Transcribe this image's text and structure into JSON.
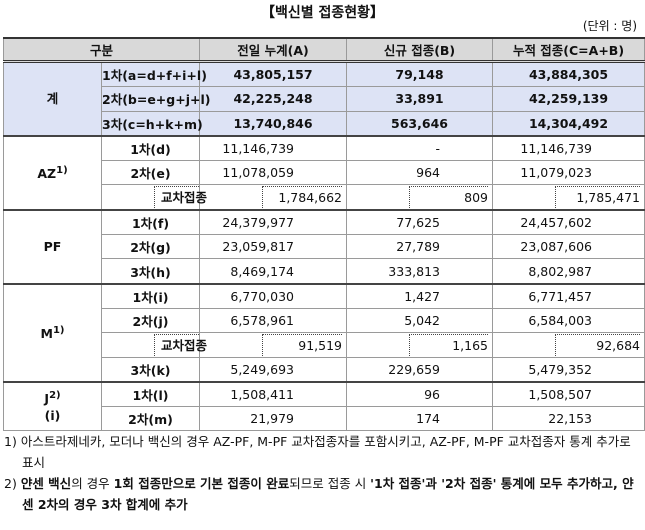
{
  "header": {
    "title": "【백신별 접종현황】",
    "unit": "(단위 : 명)"
  },
  "table": {
    "columns": [
      "구분",
      "전일 누계(A)",
      "신규 접종(B)",
      "누적 접종(C=A+B)"
    ],
    "groups": [
      {
        "label": "계",
        "highlight": true,
        "rows": [
          {
            "label": "1차(a=d+f+i+l)",
            "values": [
              "43,805,157",
              "79,148",
              "43,884,305"
            ]
          },
          {
            "label": "2차(b=e+g+j+l)",
            "values": [
              "42,225,248",
              "33,891",
              "42,259,139"
            ]
          },
          {
            "label": "3차(c=h+k+m)",
            "values": [
              "13,740,846",
              "563,646",
              "14,304,492"
            ]
          }
        ]
      },
      {
        "label": "AZ",
        "note": "1)",
        "rows": [
          {
            "label": "1차(d)",
            "values": [
              "11,146,739",
              "-",
              "11,146,739"
            ]
          },
          {
            "label": "2차(e)",
            "values": [
              "11,078,059",
              "964",
              "11,079,023"
            ]
          },
          {
            "label": "교차접종",
            "cross": true,
            "values": [
              "1,784,662",
              "809",
              "1,785,471"
            ]
          }
        ]
      },
      {
        "label": "PF",
        "rows": [
          {
            "label": "1차(f)",
            "values": [
              "24,379,977",
              "77,625",
              "24,457,602"
            ]
          },
          {
            "label": "2차(g)",
            "values": [
              "23,059,817",
              "27,789",
              "23,087,606"
            ]
          },
          {
            "label": "3차(h)",
            "values": [
              "8,469,174",
              "333,813",
              "8,802,987"
            ]
          }
        ]
      },
      {
        "label": "M",
        "note": "1)",
        "rows": [
          {
            "label": "1차(i)",
            "values": [
              "6,770,030",
              "1,427",
              "6,771,457"
            ]
          },
          {
            "label": "2차(j)",
            "values": [
              "6,578,961",
              "5,042",
              "6,584,003"
            ]
          },
          {
            "label": "교차접종",
            "cross": true,
            "values": [
              "91,519",
              "1,165",
              "92,684"
            ]
          },
          {
            "label": "3차(k)",
            "values": [
              "5,249,693",
              "229,659",
              "5,479,352"
            ]
          }
        ]
      },
      {
        "label": "J",
        "note": "2)",
        "sub": "(i)",
        "rows": [
          {
            "label": "1차(l)",
            "values": [
              "1,508,411",
              "96",
              "1,508,507"
            ]
          },
          {
            "label": "2차(m)",
            "values": [
              "21,979",
              "174",
              "22,153"
            ]
          }
        ]
      }
    ]
  },
  "notes": [
    {
      "mark": "1)",
      "segments": [
        {
          "text": "아스트라제네카, 모더나 백신의 경우 AZ-PF, M-PF 교차접종자를 포함시키고, AZ-PF, M-PF 교차접종자 통계 추가로 표시",
          "bold": false
        }
      ]
    },
    {
      "mark": "2)",
      "segments": [
        {
          "text": "얀센 백신",
          "bold": true
        },
        {
          "text": "의 경우 ",
          "bold": false
        },
        {
          "text": "1회 접종만으로 기본 접종이 완료",
          "bold": true
        },
        {
          "text": "되므로 접종 시 ",
          "bold": false
        },
        {
          "text": "'1차 접종'과 '2차 접종' 통계에 모두 추가하고, 얀센 2차의 경우 3차 합계에 추가",
          "bold": true
        }
      ]
    }
  ]
}
